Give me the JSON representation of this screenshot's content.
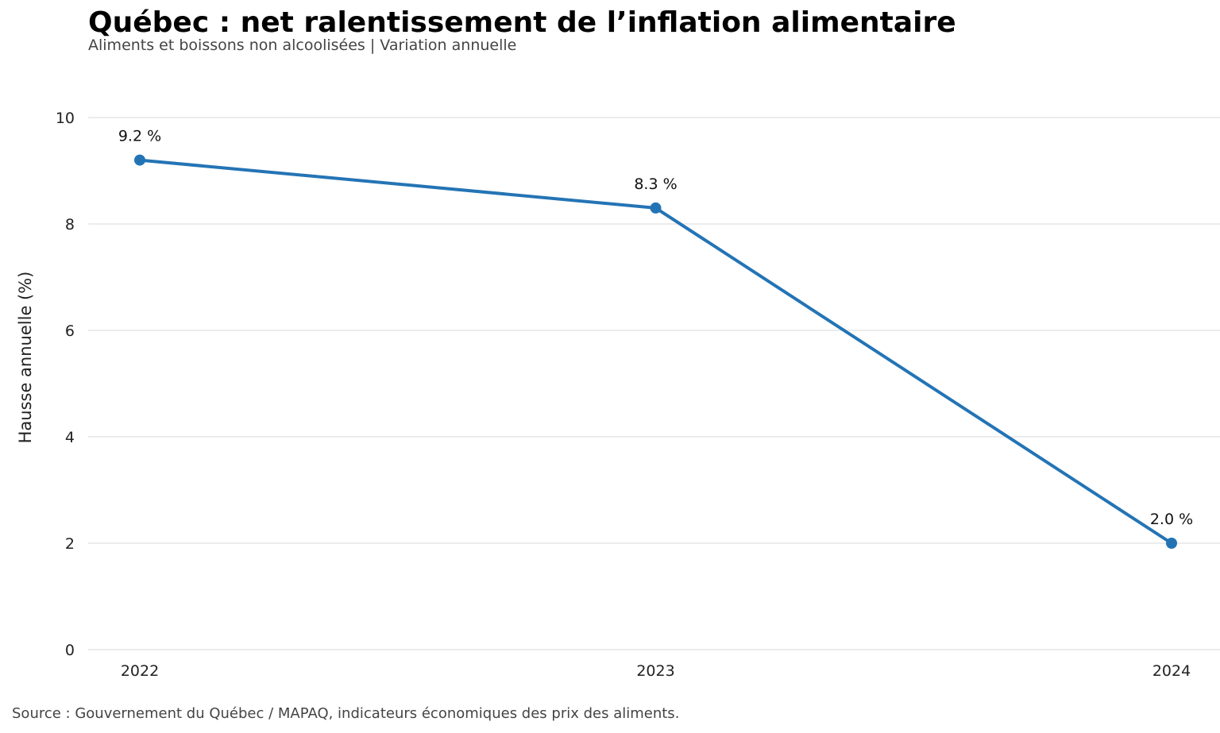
{
  "chart_data": {
    "type": "line",
    "title": "Québec : net ralentissement de l’inflation alimentaire",
    "subtitle": "Aliments et boissons non alcoolisées | Variation annuelle",
    "ylabel": "Hausse annuelle (%)",
    "xlabel": "",
    "categories": [
      "2022",
      "2023",
      "2024"
    ],
    "series": [
      {
        "values": [
          9.2,
          8.3,
          2.0
        ],
        "data_labels": [
          "9.2 %",
          "8.3 %",
          "2.0 %"
        ],
        "color": "#2474b5"
      }
    ],
    "ylim": [
      0,
      10
    ],
    "yticks": [
      "0",
      "2",
      "4",
      "6",
      "8",
      "10"
    ],
    "grid": true,
    "source": "Source : Gouvernement du Québec / MAPAQ, indicateurs économiques des prix des aliments."
  }
}
